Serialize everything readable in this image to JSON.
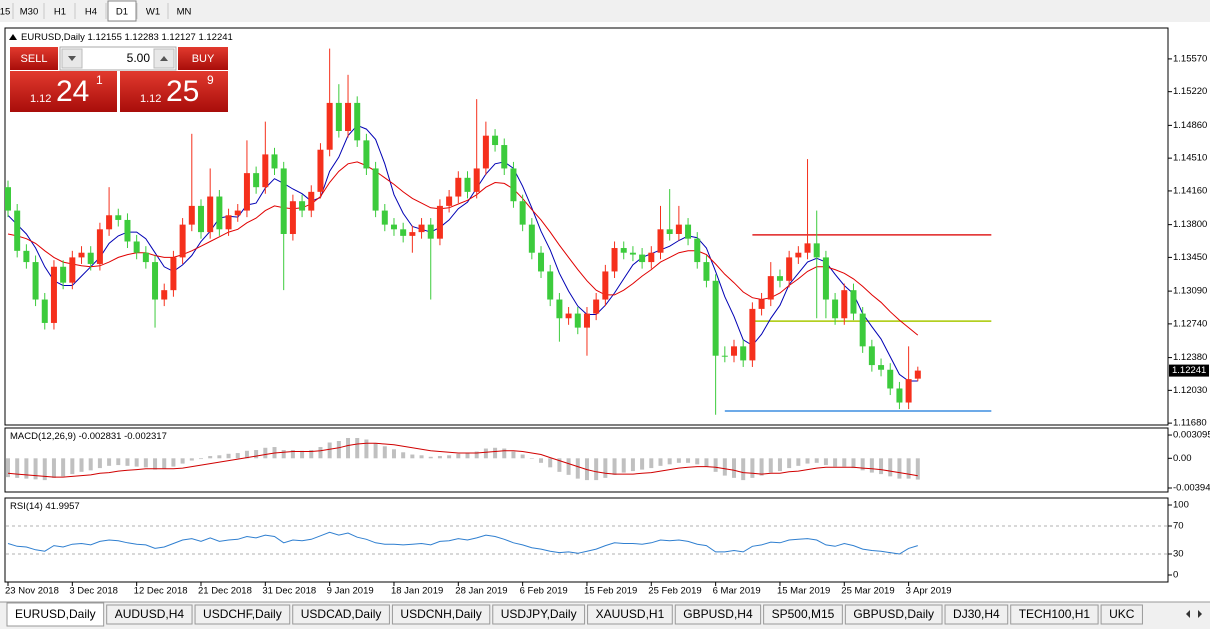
{
  "toolbar": [
    "15",
    "M30",
    "H1",
    "H4",
    "D1",
    "W1",
    "MN"
  ],
  "symbol": "EURUSD,Daily",
  "trade_panel": {
    "sell": "SELL",
    "lots": "5.00",
    "buy": "BUY",
    "bid": {
      "prefix": "1.12",
      "big": "24",
      "sup": "1"
    },
    "ask": {
      "prefix": "1.12",
      "big": "25",
      "sup": "9"
    }
  },
  "tabs": [
    "EURUSD,Daily",
    "AUDUSD,H4",
    "USDCHF,Daily",
    "USDCAD,Daily",
    "USDCNH,Daily",
    "USDJPY,Daily",
    "XAUUSD,H1",
    "GBPUSD,H4",
    "SP500,M15",
    "GBPUSD,Daily",
    "DJ30,H4",
    "TECH100,H1",
    "UKC"
  ],
  "chart_data": {
    "type": "candlestick",
    "up_color": "#f5301c",
    "down_color": "#3ccb3c",
    "categories": [
      "23 Nov 2018",
      null,
      null,
      null,
      null,
      null,
      null,
      "3 Dec 2018",
      null,
      null,
      null,
      null,
      null,
      null,
      "12 Dec 2018",
      null,
      null,
      null,
      null,
      null,
      null,
      "21 Dec 2018",
      null,
      null,
      null,
      null,
      null,
      null,
      "31 Dec 2018",
      null,
      null,
      null,
      null,
      null,
      null,
      "9 Jan 2019",
      null,
      null,
      null,
      null,
      null,
      null,
      "18 Jan 2019",
      null,
      null,
      null,
      null,
      null,
      null,
      "28 Jan 2019",
      null,
      null,
      null,
      null,
      null,
      null,
      "6 Feb 2019",
      null,
      null,
      null,
      null,
      null,
      null,
      "15 Feb 2019",
      null,
      null,
      null,
      null,
      null,
      null,
      "25 Feb 2019",
      null,
      null,
      null,
      null,
      null,
      null,
      "6 Mar 2019",
      null,
      null,
      null,
      null,
      null,
      null,
      "15 Mar 2019",
      null,
      null,
      null,
      null,
      null,
      null,
      "25 Mar 2019",
      null,
      null,
      null,
      null,
      null,
      null,
      "3 Apr 2019",
      null
    ],
    "open": [
      1.142,
      1.1395,
      1.1352,
      1.134,
      1.13,
      1.1275,
      1.1335,
      1.1318,
      1.1345,
      1.135,
      1.1338,
      1.1375,
      1.139,
      1.1385,
      1.1362,
      1.135,
      1.134,
      1.13,
      1.131,
      1.1345,
      1.138,
      1.14,
      1.1372,
      1.141,
      1.1375,
      1.139,
      1.1395,
      1.1435,
      1.142,
      1.1455,
      1.144,
      1.137,
      1.1405,
      1.1395,
      1.1415,
      1.146,
      1.151,
      1.148,
      1.151,
      1.147,
      1.144,
      1.1395,
      1.138,
      1.1375,
      1.1368,
      1.1372,
      1.138,
      1.1365,
      1.14,
      1.141,
      1.143,
      1.1415,
      1.144,
      1.1475,
      1.1465,
      1.144,
      1.1405,
      1.138,
      1.135,
      1.133,
      1.13,
      1.128,
      1.1285,
      1.127,
      1.1285,
      1.13,
      1.133,
      1.1355,
      1.135,
      1.1348,
      1.134,
      1.135,
      1.1375,
      1.137,
      1.138,
      1.1365,
      1.134,
      1.132,
      1.124,
      1.124,
      1.125,
      1.1235,
      1.129,
      1.13,
      1.1325,
      1.132,
      1.1345,
      1.135,
      1.136,
      1.1345,
      1.13,
      1.128,
      1.131,
      1.1285,
      1.125,
      1.123,
      1.1225,
      1.1205,
      1.119,
      1.12155
    ],
    "high": [
      1.1427,
      1.1402,
      1.1359,
      1.1347,
      1.1307,
      1.1342,
      1.1342,
      1.1352,
      1.1357,
      1.1357,
      1.1382,
      1.142,
      1.1397,
      1.1392,
      1.1369,
      1.1357,
      1.1347,
      1.1317,
      1.1352,
      1.1387,
      1.1477,
      1.1407,
      1.144,
      1.1417,
      1.1397,
      1.1402,
      1.147,
      1.1442,
      1.149,
      1.1462,
      1.1447,
      1.1412,
      1.1412,
      1.1422,
      1.1467,
      1.1568,
      1.153,
      1.154,
      1.1517,
      1.1477,
      1.1447,
      1.1402,
      1.1387,
      1.1382,
      1.1379,
      1.1387,
      1.1387,
      1.1407,
      1.1417,
      1.1437,
      1.1437,
      1.1514,
      1.149,
      1.1482,
      1.1472,
      1.1447,
      1.1412,
      1.1387,
      1.1357,
      1.1337,
      1.1307,
      1.1292,
      1.1292,
      1.1292,
      1.1307,
      1.1337,
      1.1362,
      1.1362,
      1.1357,
      1.1355,
      1.1357,
      1.14,
      1.1418,
      1.14,
      1.1387,
      1.1372,
      1.1347,
      1.1327,
      1.125,
      1.1257,
      1.1257,
      1.1297,
      1.1307,
      1.134,
      1.1332,
      1.1352,
      1.1357,
      1.145,
      1.1395,
      1.1352,
      1.1307,
      1.1317,
      1.1317,
      1.1292,
      1.1257,
      1.1237,
      1.1232,
      1.1212,
      1.125,
      1.12283
    ],
    "low": [
      1.1388,
      1.1345,
      1.1333,
      1.1293,
      1.1268,
      1.1268,
      1.1311,
      1.1311,
      1.1338,
      1.1331,
      1.1331,
      1.1368,
      1.1378,
      1.1355,
      1.1343,
      1.1333,
      1.127,
      1.1293,
      1.1303,
      1.1338,
      1.1373,
      1.1365,
      1.1365,
      1.1368,
      1.1368,
      1.1383,
      1.1388,
      1.1413,
      1.1413,
      1.1433,
      1.131,
      1.1363,
      1.1388,
      1.1388,
      1.1408,
      1.1453,
      1.1473,
      1.1473,
      1.1463,
      1.1433,
      1.1388,
      1.1373,
      1.1368,
      1.1361,
      1.135,
      1.1365,
      1.13,
      1.1358,
      1.1393,
      1.1403,
      1.1408,
      1.1408,
      1.1433,
      1.1458,
      1.1433,
      1.1398,
      1.1373,
      1.1343,
      1.1323,
      1.1293,
      1.1255,
      1.1273,
      1.1263,
      1.124,
      1.1278,
      1.1293,
      1.1323,
      1.1343,
      1.1341,
      1.1333,
      1.1333,
      1.1343,
      1.1363,
      1.1363,
      1.1358,
      1.1333,
      1.1313,
      1.1177,
      1.1233,
      1.1233,
      1.1228,
      1.1228,
      1.1283,
      1.1293,
      1.1313,
      1.1313,
      1.1338,
      1.1343,
      1.128,
      1.128,
      1.1273,
      1.1273,
      1.1278,
      1.1243,
      1.1223,
      1.1218,
      1.1198,
      1.1183,
      1.1183,
      1.12127
    ],
    "close": [
      1.1395,
      1.1352,
      1.134,
      1.13,
      1.1275,
      1.1335,
      1.1318,
      1.1345,
      1.135,
      1.1338,
      1.1375,
      1.139,
      1.1385,
      1.1362,
      1.135,
      1.134,
      1.13,
      1.131,
      1.1345,
      1.138,
      1.14,
      1.1372,
      1.141,
      1.1375,
      1.139,
      1.1395,
      1.1435,
      1.142,
      1.1455,
      1.144,
      1.137,
      1.1405,
      1.1395,
      1.1415,
      1.146,
      1.151,
      1.148,
      1.151,
      1.147,
      1.144,
      1.1395,
      1.138,
      1.1375,
      1.1368,
      1.1372,
      1.138,
      1.1365,
      1.14,
      1.141,
      1.143,
      1.1415,
      1.144,
      1.1475,
      1.1465,
      1.144,
      1.1405,
      1.138,
      1.135,
      1.133,
      1.13,
      1.128,
      1.1285,
      1.127,
      1.1285,
      1.13,
      1.133,
      1.1355,
      1.135,
      1.1348,
      1.134,
      1.135,
      1.1375,
      1.137,
      1.138,
      1.1365,
      1.134,
      1.132,
      1.124,
      1.124,
      1.125,
      1.1235,
      1.129,
      1.13,
      1.1325,
      1.132,
      1.1345,
      1.135,
      1.136,
      1.1345,
      1.13,
      1.128,
      1.131,
      1.1285,
      1.125,
      1.123,
      1.1225,
      1.1205,
      1.119,
      1.1215,
      1.12241
    ],
    "moving_averages": [
      {
        "color": "#0000b4",
        "values": [
          1.139,
          1.138,
          1.137,
          1.1355,
          1.1335,
          1.132,
          1.1315,
          1.1315,
          1.1325,
          1.1335,
          1.1345,
          1.136,
          1.1368,
          1.1372,
          1.1372,
          1.1365,
          1.135,
          1.1335,
          1.133,
          1.1337,
          1.1347,
          1.1362,
          1.1373,
          1.1387,
          1.1389,
          1.1388,
          1.1401,
          1.1403,
          1.1419,
          1.1429,
          1.1424,
          1.1418,
          1.1413,
          1.1405,
          1.1409,
          1.1437,
          1.1452,
          1.1475,
          1.1486,
          1.1482,
          1.1471,
          1.1445,
          1.1412,
          1.1392,
          1.1378,
          1.1375,
          1.1372,
          1.1377,
          1.1385,
          1.1397,
          1.1404,
          1.1419,
          1.1434,
          1.1445,
          1.1447,
          1.144,
          1.1421,
          1.1398,
          1.1373,
          1.1353,
          1.1328,
          1.1309,
          1.1293,
          1.1284,
          1.1284,
          1.1294,
          1.1307,
          1.1322,
          1.1337,
          1.1345,
          1.1349,
          1.1353,
          1.1357,
          1.1363,
          1.1368,
          1.1366,
          1.1355,
          1.133,
          1.1303,
          1.1282,
          1.1257,
          1.1251,
          1.1263,
          1.128,
          1.1294,
          1.1316,
          1.1328,
          1.134,
          1.1344,
          1.134,
          1.1327,
          1.1315,
          1.1306,
          1.1285,
          1.1271,
          1.1258,
          1.1239,
          1.122,
          1.1213,
          1.1213
        ]
      },
      {
        "color": "#e00000",
        "values": [
          1.137,
          1.1368,
          1.1365,
          1.136,
          1.1352,
          1.1345,
          1.134,
          1.1338,
          1.1336,
          1.1335,
          1.1336,
          1.134,
          1.1345,
          1.1348,
          1.135,
          1.135,
          1.1347,
          1.1345,
          1.1345,
          1.1348,
          1.1352,
          1.1357,
          1.1362,
          1.1367,
          1.1372,
          1.1375,
          1.1382,
          1.1387,
          1.1395,
          1.14,
          1.1398,
          1.1397,
          1.1398,
          1.1402,
          1.141,
          1.1425,
          1.1437,
          1.1445,
          1.1447,
          1.1443,
          1.1437,
          1.143,
          1.1423,
          1.1415,
          1.1408,
          1.1403,
          1.1398,
          1.1397,
          1.1398,
          1.1402,
          1.1406,
          1.1412,
          1.142,
          1.1425,
          1.1424,
          1.1418,
          1.1408,
          1.1396,
          1.1385,
          1.1372,
          1.1358,
          1.1345,
          1.1332,
          1.132,
          1.131,
          1.1305,
          1.1305,
          1.131,
          1.1317,
          1.1325,
          1.1332,
          1.134,
          1.1345,
          1.135,
          1.1352,
          1.1352,
          1.1348,
          1.1338,
          1.1327,
          1.1318,
          1.1308,
          1.1302,
          1.13,
          1.1302,
          1.1307,
          1.1315,
          1.1322,
          1.133,
          1.1335,
          1.1335,
          1.1332,
          1.1328,
          1.1322,
          1.1314,
          1.1305,
          1.1297,
          1.1287,
          1.1278,
          1.127,
          1.1262
        ]
      }
    ],
    "levels": [
      {
        "value": 1.1369,
        "color": "#e02020",
        "x": [
          81,
          107
        ]
      },
      {
        "value": 1.1277,
        "color": "#a8c800",
        "x": [
          81,
          107
        ]
      },
      {
        "value": 1.1181,
        "color": "#3d8ee0",
        "x": [
          78,
          107
        ]
      }
    ],
    "ylim": [
      1.1166,
      1.159
    ],
    "yticks": [
      {
        "value": 1.1557,
        "label": "1.15570"
      },
      {
        "value": 1.1522,
        "label": "1.15220"
      },
      {
        "value": 1.1486,
        "label": "1.14860"
      },
      {
        "value": 1.1451,
        "label": "1.14510"
      },
      {
        "value": 1.1416,
        "label": "1.14160"
      },
      {
        "value": 1.138,
        "label": "1.13800"
      },
      {
        "value": 1.1345,
        "label": "1.13450"
      },
      {
        "value": 1.1309,
        "label": "1.13090"
      },
      {
        "value": 1.1274,
        "label": "1.12740"
      },
      {
        "value": 1.1238,
        "label": "1.12380"
      },
      {
        "value": 1.1203,
        "label": "1.12030"
      },
      {
        "value": 1.1168,
        "label": "1.11680"
      }
    ],
    "macd": {
      "title": "MACD(12,26,9)",
      "histogram_color": "#c0c0c0",
      "signal_color": "#d00000",
      "values": [
        -0.0025,
        -0.0026,
        -0.0027,
        -0.0028,
        -0.0029,
        -0.0026,
        -0.0024,
        -0.0021,
        -0.0018,
        -0.0016,
        -0.0013,
        -0.001,
        -0.0009,
        -0.001,
        -0.0011,
        -0.0012,
        -0.0015,
        -0.0014,
        -0.0011,
        -0.0007,
        -0.0003,
        -0.0001,
        0.0003,
        0.0004,
        0.0006,
        0.0007,
        0.001,
        0.0011,
        0.0014,
        0.0015,
        0.0011,
        0.0011,
        0.001,
        0.0011,
        0.0015,
        0.0021,
        0.0023,
        0.0027,
        0.0027,
        0.0025,
        0.002,
        0.0016,
        0.0012,
        0.0008,
        0.0005,
        0.0004,
        0.0002,
        0.0003,
        0.0004,
        0.0006,
        0.0007,
        0.0009,
        0.0013,
        0.0014,
        0.0013,
        0.0009,
        0.0005,
        0.0,
        -0.0006,
        -0.0012,
        -0.0018,
        -0.0022,
        -0.0027,
        -0.0029,
        -0.0029,
        -0.0026,
        -0.0022,
        -0.0019,
        -0.0017,
        -0.0015,
        -0.0013,
        -0.001,
        -0.0008,
        -0.0006,
        -0.0006,
        -0.0008,
        -0.0011,
        -0.0018,
        -0.0023,
        -0.0026,
        -0.0029,
        -0.0026,
        -0.0023,
        -0.0019,
        -0.0017,
        -0.0013,
        -0.001,
        -0.0007,
        -0.0006,
        -0.0009,
        -0.0011,
        -0.0011,
        -0.0013,
        -0.0016,
        -0.0019,
        -0.0021,
        -0.0024,
        -0.0027,
        -0.0027,
        -0.002831
      ],
      "signal": [
        -0.002,
        -0.0021,
        -0.0022,
        -0.0023,
        -0.0024,
        -0.0025,
        -0.0025,
        -0.0024,
        -0.0023,
        -0.0022,
        -0.002,
        -0.0019,
        -0.0017,
        -0.0016,
        -0.0015,
        -0.0014,
        -0.0014,
        -0.0014,
        -0.0014,
        -0.0013,
        -0.0011,
        -0.0009,
        -0.0007,
        -0.0005,
        -0.0003,
        -0.0001,
        0.0001,
        0.0003,
        0.0005,
        0.0007,
        0.0008,
        0.0009,
        0.0009,
        0.0009,
        0.001,
        0.0012,
        0.0014,
        0.0017,
        0.0019,
        0.002,
        0.002,
        0.0019,
        0.0018,
        0.0016,
        0.0014,
        0.0012,
        0.001,
        0.0009,
        0.0008,
        0.0007,
        0.0007,
        0.0007,
        0.0008,
        0.0009,
        0.001,
        0.001,
        0.0009,
        0.0007,
        0.0005,
        0.0001,
        -0.0003,
        -0.0007,
        -0.0011,
        -0.0015,
        -0.0018,
        -0.002,
        -0.0021,
        -0.0021,
        -0.0021,
        -0.002,
        -0.0019,
        -0.0017,
        -0.0015,
        -0.0013,
        -0.0012,
        -0.0011,
        -0.0011,
        -0.0012,
        -0.0014,
        -0.0016,
        -0.0019,
        -0.002,
        -0.0021,
        -0.002,
        -0.002,
        -0.0018,
        -0.0017,
        -0.0015,
        -0.0013,
        -0.0012,
        -0.0012,
        -0.0012,
        -0.0012,
        -0.0013,
        -0.0014,
        -0.0015,
        -0.0017,
        -0.0019,
        -0.0021,
        -0.002317
      ],
      "ylim": [
        -0.00448,
        0.00403
      ],
      "yticks": [
        0.003095,
        {
          "value": 0,
          "label": "0.00"
        },
        -0.003947
      ]
    },
    "rsi": {
      "title": "RSI(14)",
      "color": "#2f7fd0",
      "level_color": "#b0b0b0",
      "levels": [
        30,
        70
      ],
      "values": [
        45,
        41,
        40,
        36,
        34,
        42,
        40,
        44,
        45,
        43,
        48,
        50,
        49,
        46,
        44,
        43,
        38,
        40,
        45,
        50,
        52,
        48,
        53,
        48,
        50,
        51,
        55,
        53,
        57,
        55,
        46,
        50,
        49,
        51,
        56,
        61,
        57,
        60,
        54,
        51,
        46,
        44,
        44,
        43,
        44,
        45,
        43,
        48,
        49,
        52,
        50,
        53,
        57,
        55,
        51,
        46,
        43,
        39,
        37,
        34,
        32,
        33,
        31,
        34,
        37,
        42,
        46,
        45,
        45,
        44,
        46,
        50,
        49,
        50,
        48,
        44,
        42,
        33,
        33,
        35,
        33,
        41,
        43,
        47,
        46,
        50,
        51,
        52,
        50,
        43,
        41,
        45,
        42,
        37,
        35,
        34,
        32,
        30,
        38,
        41.9957
      ],
      "ylim": [
        -10,
        110
      ],
      "yticks": [
        100,
        70,
        30,
        0
      ]
    }
  }
}
